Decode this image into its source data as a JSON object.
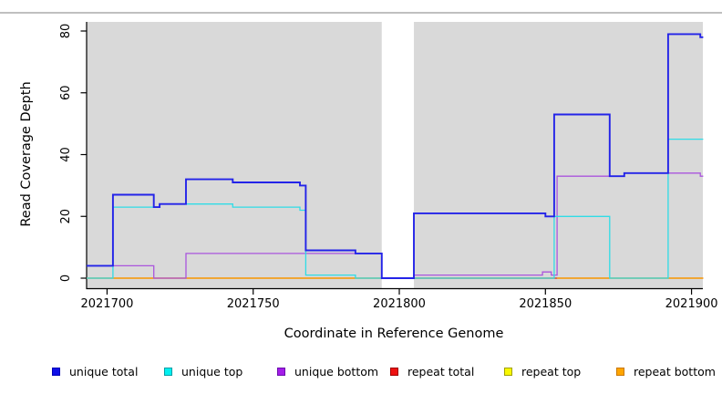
{
  "figure_title": "",
  "axes": {
    "x": {
      "title": "Coordinate in Reference Genome",
      "tick_labels": [
        "2021700",
        "2021750",
        "2021800",
        "2021850",
        "2021900"
      ]
    },
    "y": {
      "title": "Read Coverage Depth",
      "tick_labels": [
        "0",
        "20",
        "40",
        "60",
        "80"
      ]
    }
  },
  "legend": {
    "items": [
      {
        "label": "unique total",
        "fill": "#0f0fe8",
        "border": "#0000b8"
      },
      {
        "label": "unique top",
        "fill": "#00f0f0",
        "border": "#009da5"
      },
      {
        "label": "unique bottom",
        "fill": "#a41de8",
        "border": "#6a0dad"
      },
      {
        "label": "repeat total",
        "fill": "#ee1010",
        "border": "#a00000"
      },
      {
        "label": "repeat top",
        "fill": "#f8f800",
        "border": "#a0a000"
      },
      {
        "label": "repeat bottom",
        "fill": "#ffa500",
        "border": "#c97700"
      }
    ]
  },
  "chart_data": {
    "type": "line",
    "subtype": "step",
    "title": "",
    "xlabel": "Coordinate in Reference Genome",
    "ylabel": "Read Coverage Depth",
    "xlim": [
      2021693,
      2021904
    ],
    "ylim": [
      0,
      83
    ],
    "x_ticks": [
      2021700,
      2021750,
      2021800,
      2021850,
      2021900
    ],
    "y_ticks": [
      0,
      20,
      40,
      60,
      80
    ],
    "grid": false,
    "legend_position": "bottom",
    "plot_background": "#d9d9d9",
    "no_data_region": {
      "from": 2021794,
      "to": 2021805,
      "color": "#ffffff"
    },
    "series": [
      {
        "name": "unique total",
        "color": "#2323e8",
        "width": 1.9,
        "steps": [
          [
            2021693,
            4
          ],
          [
            2021702,
            27
          ],
          [
            2021716,
            23
          ],
          [
            2021718,
            24
          ],
          [
            2021727,
            32
          ],
          [
            2021743,
            31
          ],
          [
            2021766,
            30
          ],
          [
            2021768,
            9
          ],
          [
            2021785,
            8
          ],
          [
            2021794,
            0
          ],
          [
            2021805,
            21
          ],
          [
            2021850,
            20
          ],
          [
            2021853,
            53
          ],
          [
            2021872,
            33
          ],
          [
            2021877,
            34
          ],
          [
            2021892,
            79
          ],
          [
            2021903,
            78
          ],
          [
            2021904,
            78
          ]
        ]
      },
      {
        "name": "unique top",
        "color": "#2fdce6",
        "width": 1.3,
        "steps": [
          [
            2021693,
            0
          ],
          [
            2021702,
            23
          ],
          [
            2021718,
            24
          ],
          [
            2021743,
            23
          ],
          [
            2021766,
            22
          ],
          [
            2021768,
            1
          ],
          [
            2021785,
            0
          ],
          [
            2021853,
            20
          ],
          [
            2021872,
            0
          ],
          [
            2021892,
            45
          ],
          [
            2021904,
            45
          ]
        ]
      },
      {
        "name": "unique bottom",
        "color": "#aa55dd",
        "width": 1.3,
        "steps": [
          [
            2021693,
            4
          ],
          [
            2021716,
            0
          ],
          [
            2021727,
            8
          ],
          [
            2021794,
            0
          ],
          [
            2021805,
            1
          ],
          [
            2021849,
            2
          ],
          [
            2021852,
            1
          ],
          [
            2021854,
            33
          ],
          [
            2021877,
            34
          ],
          [
            2021903,
            33
          ],
          [
            2021904,
            33
          ]
        ]
      },
      {
        "name": "repeat total",
        "color": "#cc4455",
        "width": 1.3,
        "steps": [
          [
            2021693,
            0
          ],
          [
            2021904,
            0
          ]
        ],
        "overlay_segment": [
          2021805,
          2021854
        ]
      },
      {
        "name": "repeat top",
        "color": "#f0f000",
        "width": 1.3,
        "steps": [
          [
            2021693,
            0
          ],
          [
            2021904,
            0
          ]
        ]
      },
      {
        "name": "repeat bottom",
        "color": "#ff9d00",
        "width": 1.3,
        "steps": [
          [
            2021693,
            0
          ],
          [
            2021904,
            0
          ]
        ]
      }
    ]
  }
}
